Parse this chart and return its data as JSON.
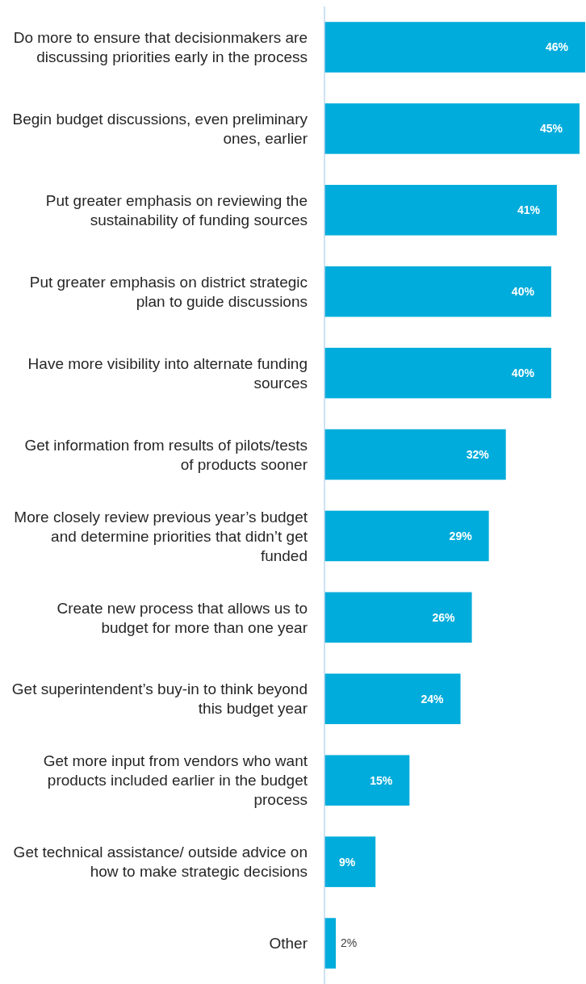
{
  "chart_data": {
    "type": "bar",
    "orientation": "horizontal",
    "categories": [
      "Do more to ensure that decisionmakers are discussing priorities early in the process",
      "Begin budget discussions, even preliminary ones, earlier",
      "Put greater emphasis on reviewing the sustainability of funding sources",
      "Put greater emphasis on district strategic plan to guide discussions",
      "Have more visibility into alternate funding sources",
      "Get information from results of pilots/tests of products sooner",
      "More closely review previous year’s budget and determine priorities that didn’t get funded",
      "Create new process that allows us to budget for more than one year",
      "Get superintendent’s buy-in to think beyond this budget year",
      "Get more input from vendors who want products included earlier in the budget process",
      "Get technical assistance/ outside advice on how to make strategic decisions",
      "Other"
    ],
    "values": [
      46,
      45,
      41,
      40,
      40,
      32,
      29,
      26,
      24,
      15,
      9,
      2
    ],
    "value_labels": [
      "46%",
      "45%",
      "41%",
      "40%",
      "40%",
      "32%",
      "29%",
      "26%",
      "24%",
      "15%",
      "9%",
      "2%"
    ],
    "color": "#00acdb",
    "xlim": [
      0,
      46
    ]
  }
}
